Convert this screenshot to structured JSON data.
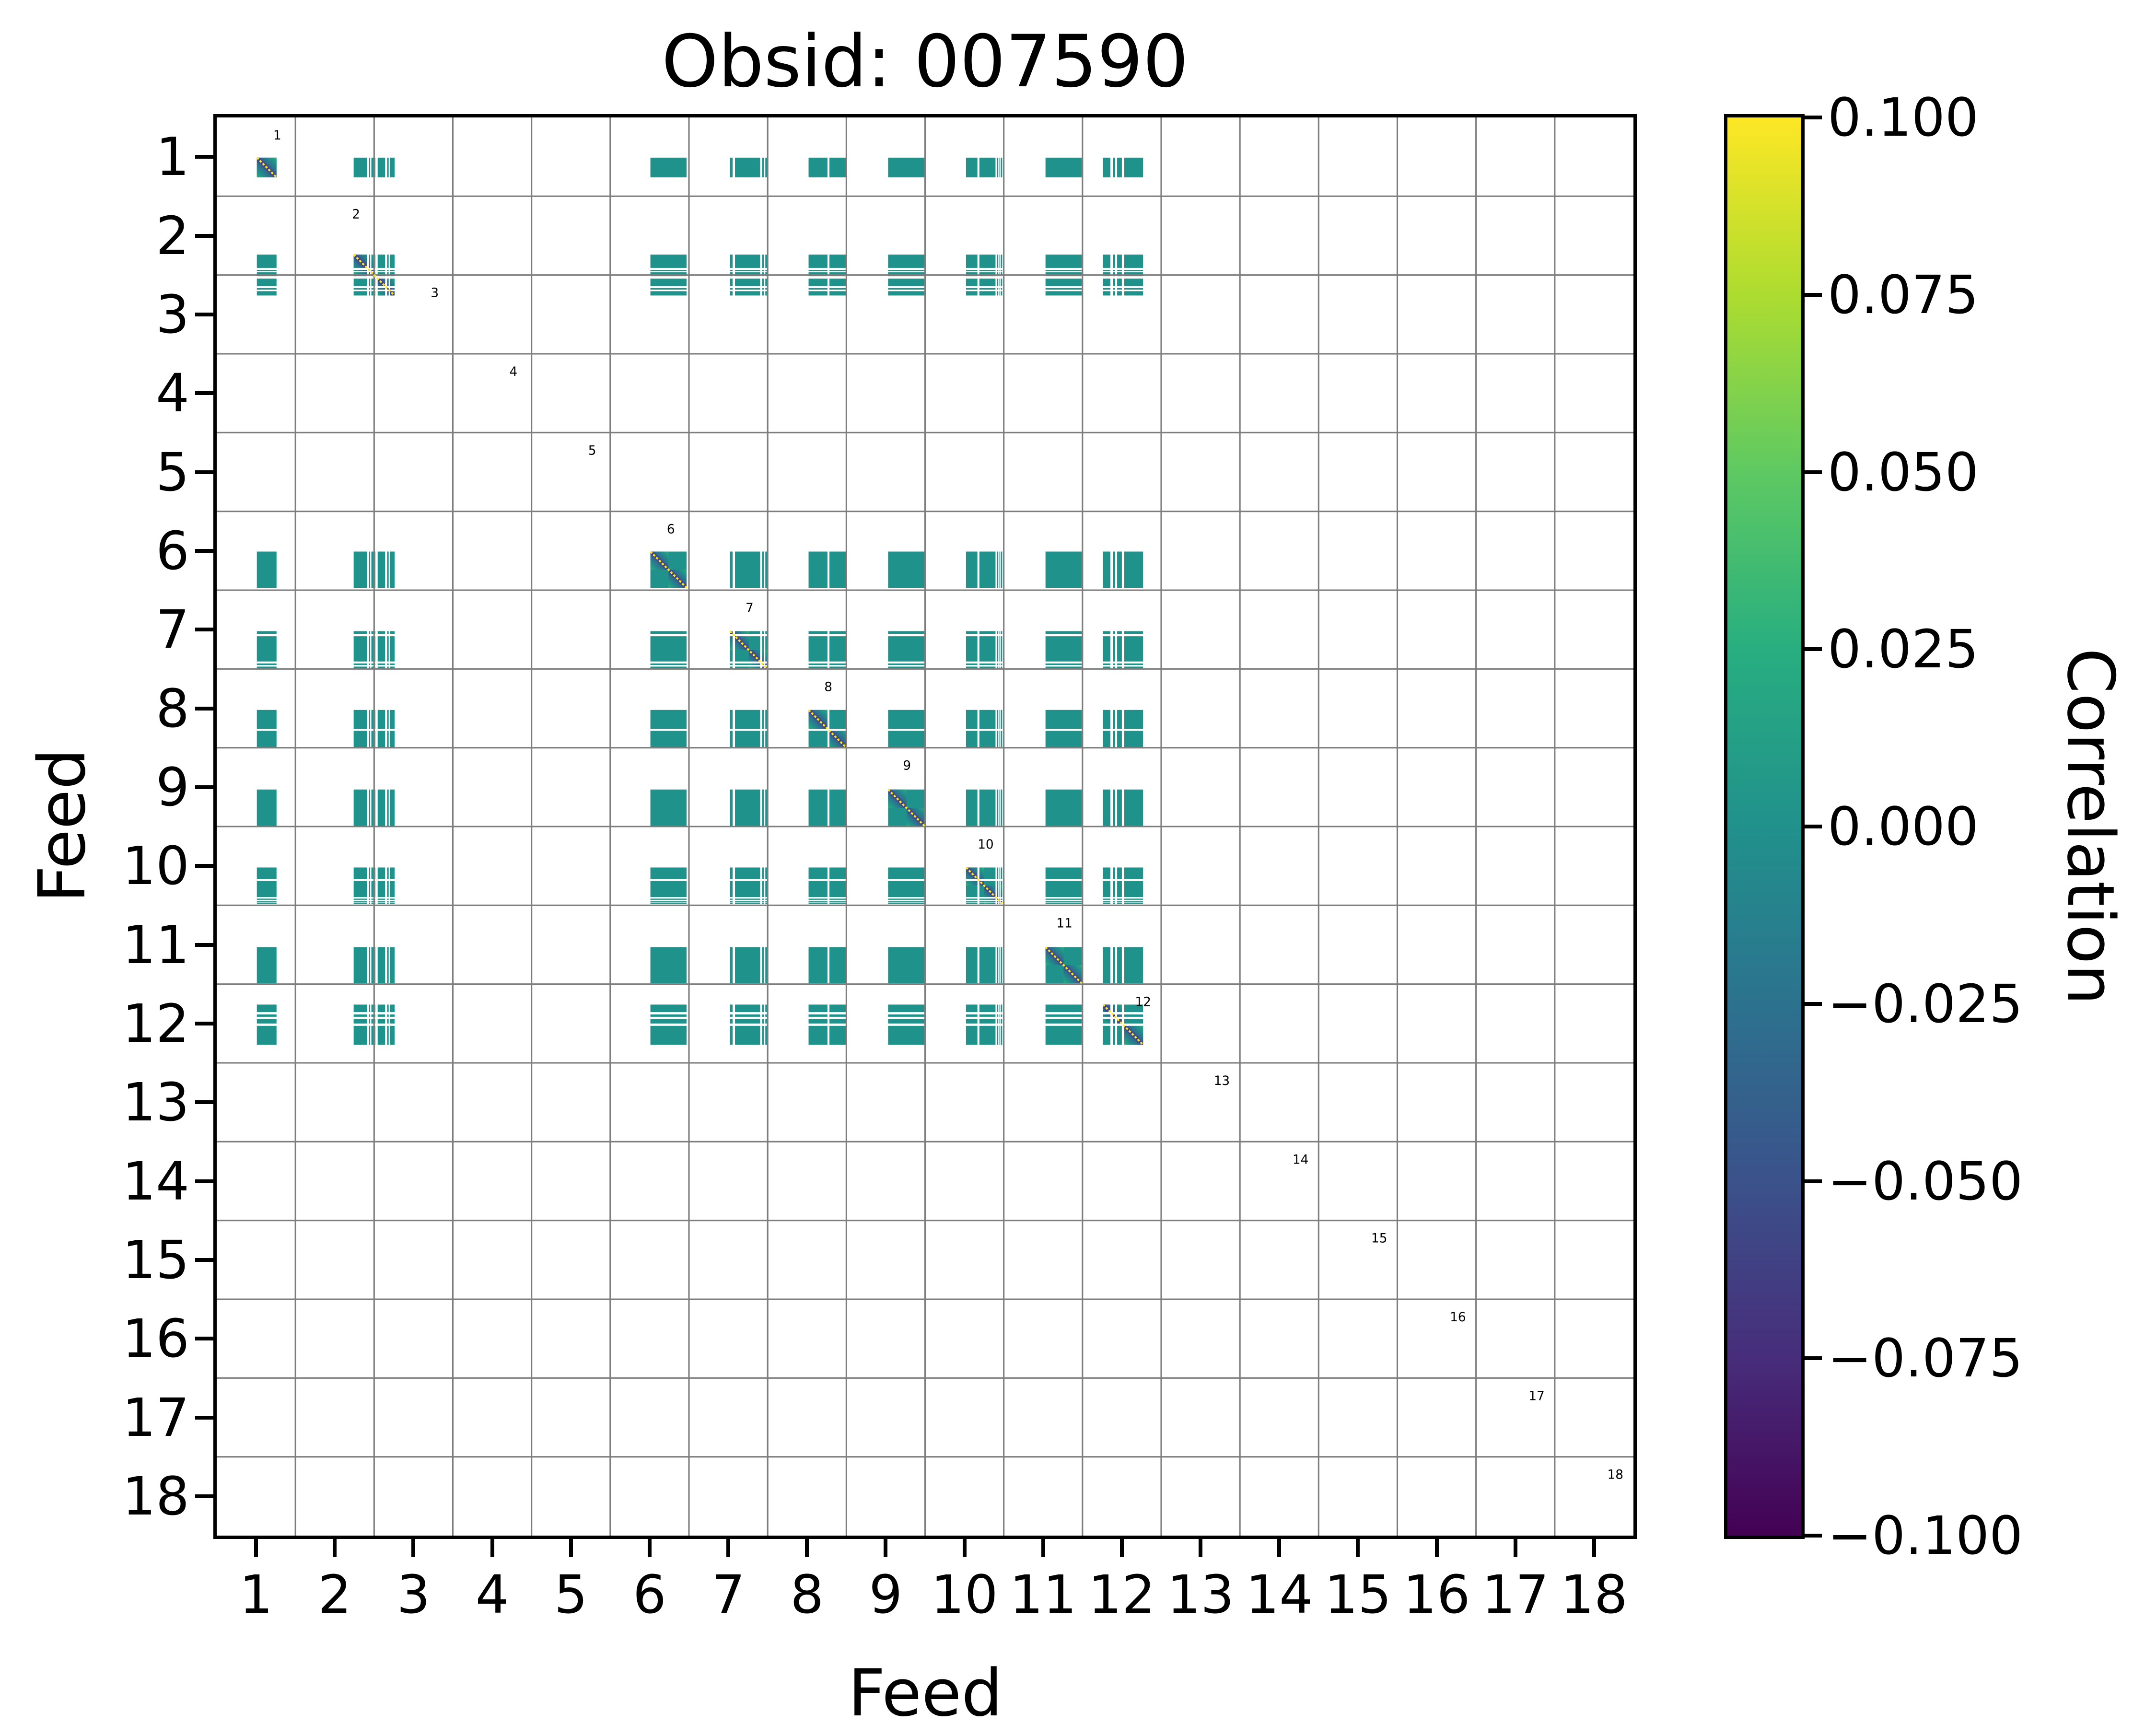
{
  "chart_data": {
    "type": "heatmap",
    "title": "Obsid: 007590",
    "xlabel": "Feed",
    "ylabel": "Feed",
    "axis_range": [
      0.5,
      18.5
    ],
    "x_ticks": [
      1,
      2,
      3,
      4,
      5,
      6,
      7,
      8,
      9,
      10,
      11,
      12,
      13,
      14,
      15,
      16,
      17,
      18
    ],
    "y_ticks": [
      1,
      2,
      3,
      4,
      5,
      6,
      7,
      8,
      9,
      10,
      11,
      12,
      13,
      14,
      15,
      16,
      17,
      18
    ],
    "grid": true,
    "diagonal_feed_labels": [
      1,
      2,
      3,
      4,
      5,
      6,
      7,
      8,
      9,
      10,
      11,
      12,
      13,
      14,
      15,
      16,
      17,
      18
    ],
    "present_feeds": [
      1,
      2,
      3,
      6,
      7,
      8,
      9,
      10,
      11,
      12
    ],
    "absent_feeds": [
      4,
      5,
      13,
      14,
      15,
      16,
      17,
      18
    ],
    "value_semantics": {
      "off_diagonal_correlation": 0.0,
      "diagonal_correlation": 1.0,
      "near_diagonal_correlation": -0.05,
      "note": "teal blocks ~0 correlation for every pair of present feeds; yellow dotted self-correlation diagonal; dark blue adjacent to diagonal; white stripes are flagged channels; feeds 4,5,13-18 fully flagged"
    },
    "bands": [
      {
        "feed": 1,
        "start": 1.01,
        "end": 1.26,
        "gaps": [],
        "splits": []
      },
      {
        "feed": 2,
        "start": 2.24,
        "end": 2.5,
        "gaps": [
          [
            2.41,
            2.435
          ],
          [
            2.45,
            2.465
          ]
        ],
        "splits": []
      },
      {
        "feed": 3,
        "start": 2.5,
        "end": 2.76,
        "gaps": [
          [
            2.515,
            2.545
          ],
          [
            2.64,
            2.665
          ],
          [
            2.685,
            2.705
          ]
        ],
        "splits": []
      },
      {
        "feed": 6,
        "start": 6.01,
        "end": 6.47,
        "gaps": [],
        "splits": [
          6.24
        ]
      },
      {
        "feed": 7,
        "start": 7.02,
        "end": 7.5,
        "gaps": [
          [
            7.055,
            7.085
          ],
          [
            7.405,
            7.43
          ],
          [
            7.45,
            7.47
          ]
        ],
        "splits": [
          7.26
        ]
      },
      {
        "feed": 8,
        "start": 8.02,
        "end": 8.5,
        "gaps": [
          [
            8.26,
            8.285
          ]
        ],
        "splits": [
          8.26
        ]
      },
      {
        "feed": 9,
        "start": 9.03,
        "end": 9.5,
        "gaps": [],
        "splits": [
          9.265
        ]
      },
      {
        "feed": 10,
        "start": 10.02,
        "end": 10.48,
        "gaps": [
          [
            10.165,
            10.19
          ],
          [
            10.395,
            10.415
          ],
          [
            10.43,
            10.445
          ],
          [
            10.455,
            10.465
          ]
        ],
        "splits": [
          10.25
        ]
      },
      {
        "feed": 11,
        "start": 11.03,
        "end": 11.49,
        "gaps": [],
        "splits": [
          11.26
        ]
      },
      {
        "feed": 12,
        "start": 11.76,
        "end": 12.27,
        "gaps": [
          [
            11.855,
            11.885
          ],
          [
            11.915,
            11.94
          ],
          [
            12.0,
            12.03
          ]
        ],
        "splits": [
          12.03
        ]
      }
    ],
    "colorbar": {
      "label": "Correlation",
      "vmin": -0.1,
      "vmax": 0.1,
      "tick_labels": [
        "0.100",
        "0.075",
        "0.050",
        "0.025",
        "0.000",
        "−0.025",
        "−0.050",
        "−0.075",
        "−0.100"
      ],
      "colormap": "viridis",
      "position": "right"
    },
    "colors": {
      "block_teal": "#1f938b",
      "diag_dark": "#453781",
      "diag_mid": "#2f6d8e",
      "diag_green": "#3fb478",
      "diag_line_yellow": "#fde725",
      "gridline": "#7d7d7d",
      "frame": "#000000",
      "background": "#ffffff",
      "viridis_stops_bottom_to_top": [
        "#440154",
        "#472d7b",
        "#3b528b",
        "#2c728e",
        "#21918c",
        "#28ae80",
        "#5ec962",
        "#addc30",
        "#fde725"
      ]
    }
  }
}
